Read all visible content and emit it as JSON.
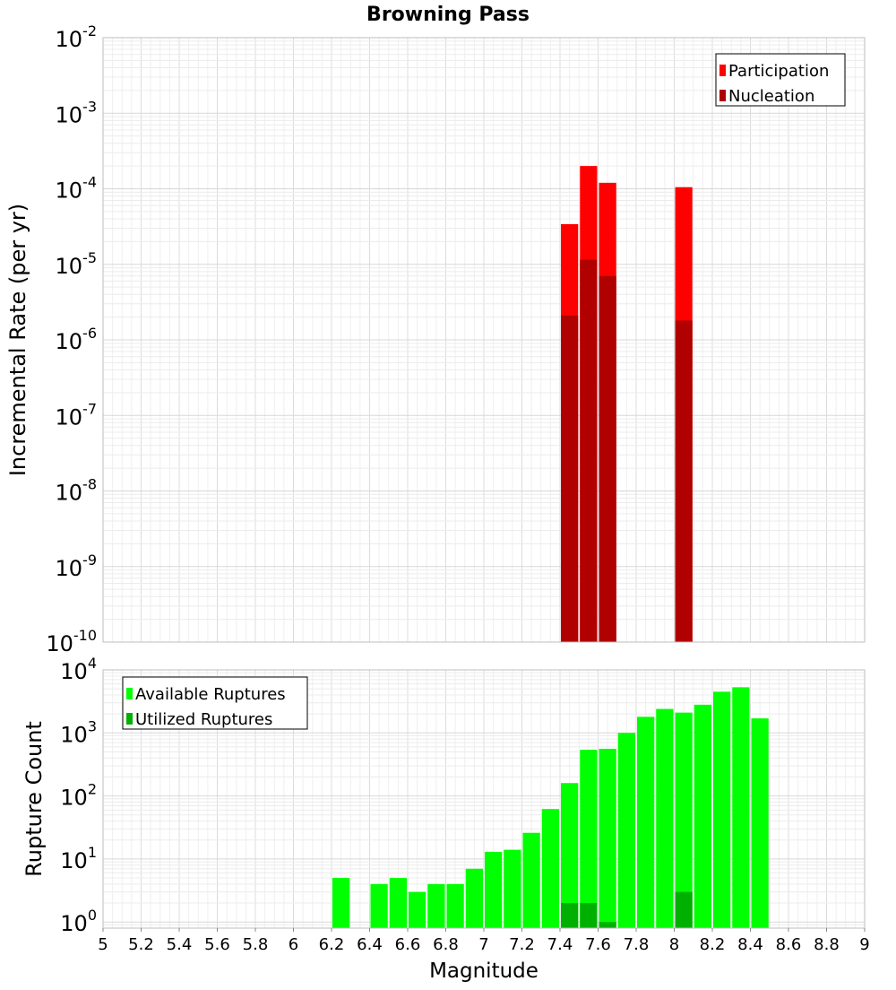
{
  "chart_data": [
    {
      "type": "bar",
      "title": "Browning Pass",
      "xlabel": "Magnitude",
      "ylabel": "Incremental Rate (per yr)",
      "y_scale": "log",
      "ylim": [
        1e-10,
        0.01
      ],
      "xlim": [
        5,
        9
      ],
      "yticks": [
        {
          "base": "10",
          "exp": "-2"
        },
        {
          "base": "10",
          "exp": "-3"
        },
        {
          "base": "10",
          "exp": "-4"
        },
        {
          "base": "10",
          "exp": "-5"
        },
        {
          "base": "10",
          "exp": "-6"
        },
        {
          "base": "10",
          "exp": "-7"
        },
        {
          "base": "10",
          "exp": "-8"
        },
        {
          "base": "10",
          "exp": "-9"
        },
        {
          "base": "10",
          "exp": "-10"
        }
      ],
      "grid": true,
      "legend_position": "top-right",
      "bin_width": 0.1,
      "series": [
        {
          "name": "Participation",
          "color": "#ff0000",
          "x": [
            7.45,
            7.55,
            7.65,
            8.05
          ],
          "values": [
            3.4e-05,
            0.0002,
            0.00012,
            0.000105
          ]
        },
        {
          "name": "Nucleation",
          "color": "#b00000",
          "x": [
            7.45,
            7.55,
            7.65,
            8.05
          ],
          "values": [
            2.1e-06,
            1.15e-05,
            7e-06,
            1.8e-06
          ]
        }
      ]
    },
    {
      "type": "bar",
      "xlabel": "Magnitude",
      "ylabel": "Rupture Count",
      "y_scale": "log",
      "ylim": [
        0.8,
        10000
      ],
      "xlim": [
        5,
        9
      ],
      "yticks": [
        {
          "base": "10",
          "exp": "4"
        },
        {
          "base": "10",
          "exp": "3"
        },
        {
          "base": "10",
          "exp": "2"
        },
        {
          "base": "10",
          "exp": "1"
        },
        {
          "base": "10",
          "exp": "0"
        }
      ],
      "xticks": [
        "5",
        "5.2",
        "5.4",
        "5.6",
        "5.8",
        "6",
        "6.2",
        "6.4",
        "6.6",
        "6.8",
        "7",
        "7.2",
        "7.4",
        "7.6",
        "7.8",
        "8",
        "8.2",
        "8.4",
        "8.6",
        "8.8",
        "9"
      ],
      "grid": true,
      "legend_position": "top-left",
      "bin_width": 0.1,
      "series": [
        {
          "name": "Available Ruptures",
          "color": "#00ff00",
          "x": [
            6.25,
            6.45,
            6.55,
            6.65,
            6.75,
            6.85,
            6.95,
            7.05,
            7.15,
            7.25,
            7.35,
            7.45,
            7.55,
            7.65,
            7.75,
            7.85,
            7.95,
            8.05,
            8.15,
            8.25,
            8.35,
            8.45
          ],
          "values": [
            5,
            4,
            5,
            3,
            4,
            4,
            7,
            13,
            14,
            26,
            62,
            160,
            540,
            560,
            1000,
            1800,
            2400,
            2100,
            2800,
            4500,
            5300,
            1700
          ]
        },
        {
          "name": "Utilized Ruptures",
          "color": "#00b000",
          "x": [
            7.45,
            7.55,
            7.65,
            8.05
          ],
          "values": [
            2,
            2,
            1,
            3
          ]
        }
      ]
    }
  ]
}
